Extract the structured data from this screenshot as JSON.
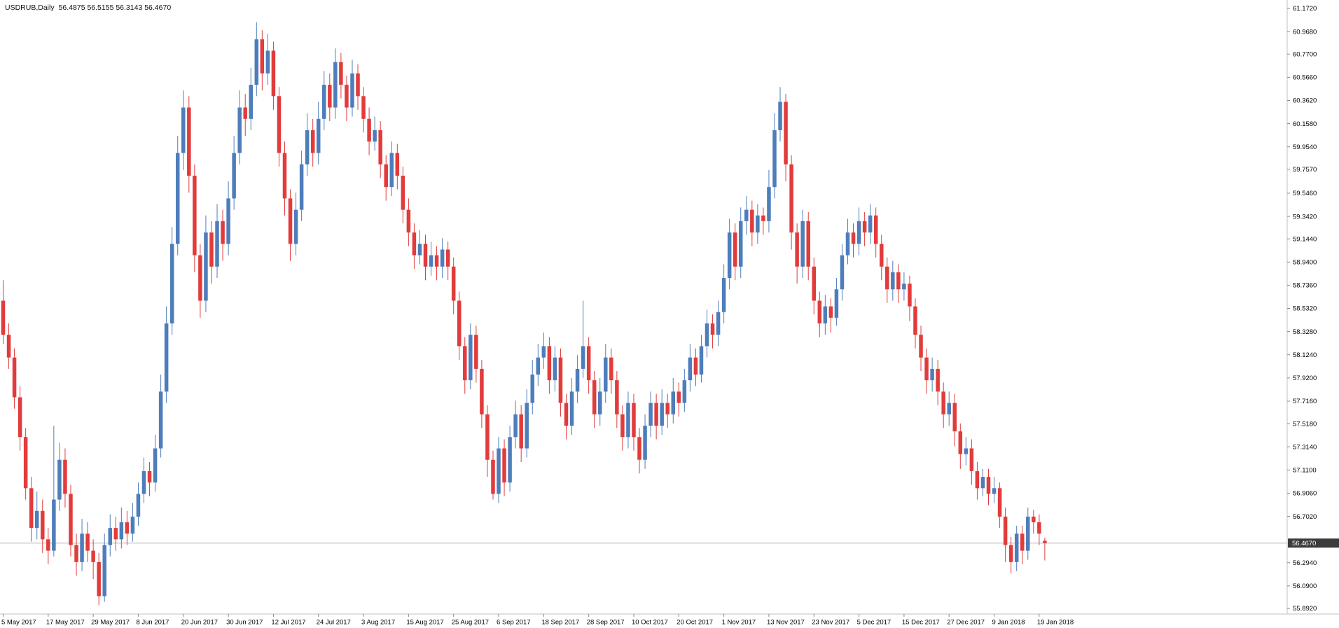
{
  "header": {
    "symbol_label": "USDRUB,Daily",
    "ohlc_text": "56.4875 56.5155 56.3143 56.4670"
  },
  "chart_data": {
    "type": "candlestick",
    "symbol": "USDRUB",
    "timeframe": "Daily",
    "ohlc_header": {
      "open": "56.4875",
      "high": "56.5155",
      "low": "56.3143",
      "close": "56.4670"
    },
    "current_price": 56.467,
    "current_price_label": "56.4670",
    "ylim": [
      55.843,
      61.246
    ],
    "grid": "off",
    "y_axis_labels": [
      "61.1720",
      "60.9680",
      "60.7700",
      "60.5660",
      "60.3620",
      "60.1580",
      "59.9540",
      "59.7570",
      "59.5460",
      "59.3420",
      "59.1440",
      "58.9400",
      "58.7360",
      "58.5320",
      "58.3280",
      "58.1240",
      "57.9200",
      "57.7160",
      "57.5180",
      "57.3140",
      "57.1100",
      "56.9060",
      "56.7020",
      "56.2940",
      "56.0900",
      "55.8920"
    ],
    "x_axis_labels": [
      {
        "text": "5 May 2017",
        "index": 0
      },
      {
        "text": "17 May 2017",
        "index": 8
      },
      {
        "text": "29 May 2017",
        "index": 16
      },
      {
        "text": "8 Jun 2017",
        "index": 24
      },
      {
        "text": "20 Jun 2017",
        "index": 32
      },
      {
        "text": "30 Jun 2017",
        "index": 40
      },
      {
        "text": "12 Jul 2017",
        "index": 48
      },
      {
        "text": "24 Jul 2017",
        "index": 56
      },
      {
        "text": "3 Aug 2017",
        "index": 64
      },
      {
        "text": "15 Aug 2017",
        "index": 72
      },
      {
        "text": "25 Aug 2017",
        "index": 80
      },
      {
        "text": "6 Sep 2017",
        "index": 88
      },
      {
        "text": "18 Sep 2017",
        "index": 96
      },
      {
        "text": "28 Sep 2017",
        "index": 104
      },
      {
        "text": "10 Oct 2017",
        "index": 112
      },
      {
        "text": "20 Oct 2017",
        "index": 120
      },
      {
        "text": "1 Nov 2017",
        "index": 128
      },
      {
        "text": "13 Nov 2017",
        "index": 136
      },
      {
        "text": "23 Nov 2017",
        "index": 144
      },
      {
        "text": "5 Dec 2017",
        "index": 152
      },
      {
        "text": "15 Dec 2017",
        "index": 160
      },
      {
        "text": "27 Dec 2017",
        "index": 168
      },
      {
        "text": "9 Jan 2018",
        "index": 176
      },
      {
        "text": "19 Jan 2018",
        "index": 184
      }
    ],
    "candles": [
      [
        58.6,
        58.78,
        58.22,
        58.3
      ],
      [
        58.3,
        58.4,
        58.0,
        58.1
      ],
      [
        58.1,
        58.18,
        57.65,
        57.75
      ],
      [
        57.75,
        57.85,
        57.28,
        57.4
      ],
      [
        57.4,
        57.48,
        56.85,
        56.95
      ],
      [
        56.95,
        57.05,
        56.48,
        56.6
      ],
      [
        56.6,
        56.92,
        56.5,
        56.75
      ],
      [
        56.75,
        56.85,
        56.38,
        56.5
      ],
      [
        56.5,
        56.6,
        56.28,
        56.4
      ],
      [
        56.4,
        57.5,
        56.35,
        56.85
      ],
      [
        56.85,
        57.35,
        56.75,
        57.2
      ],
      [
        57.2,
        57.3,
        56.78,
        56.9
      ],
      [
        56.9,
        56.98,
        56.35,
        56.45
      ],
      [
        56.45,
        56.55,
        56.18,
        56.3
      ],
      [
        56.3,
        56.68,
        56.22,
        56.55
      ],
      [
        56.55,
        56.65,
        56.3,
        56.4
      ],
      [
        56.4,
        56.5,
        56.15,
        56.3
      ],
      [
        56.3,
        56.38,
        55.92,
        56.0
      ],
      [
        56.0,
        56.55,
        55.95,
        56.45
      ],
      [
        56.45,
        56.72,
        56.35,
        56.6
      ],
      [
        56.6,
        56.7,
        56.4,
        56.5
      ],
      [
        56.5,
        56.78,
        56.42,
        56.65
      ],
      [
        56.65,
        56.75,
        56.45,
        56.55
      ],
      [
        56.55,
        56.82,
        56.48,
        56.7
      ],
      [
        56.7,
        57.0,
        56.62,
        56.9
      ],
      [
        56.9,
        57.22,
        56.82,
        57.1
      ],
      [
        57.1,
        57.18,
        56.88,
        57.0
      ],
      [
        57.0,
        57.42,
        56.92,
        57.3
      ],
      [
        57.3,
        57.95,
        57.22,
        57.8
      ],
      [
        57.8,
        58.55,
        57.7,
        58.4
      ],
      [
        58.4,
        59.25,
        58.3,
        59.1
      ],
      [
        59.1,
        60.05,
        59.0,
        59.9
      ],
      [
        59.9,
        60.45,
        59.75,
        60.3
      ],
      [
        60.3,
        60.4,
        59.55,
        59.7
      ],
      [
        59.7,
        59.8,
        58.85,
        59.0
      ],
      [
        59.0,
        59.1,
        58.45,
        58.6
      ],
      [
        58.6,
        59.35,
        58.5,
        59.2
      ],
      [
        59.2,
        59.3,
        58.75,
        58.9
      ],
      [
        58.9,
        59.45,
        58.8,
        59.3
      ],
      [
        59.3,
        59.4,
        58.95,
        59.1
      ],
      [
        59.1,
        59.65,
        59.0,
        59.5
      ],
      [
        59.5,
        60.05,
        59.4,
        59.9
      ],
      [
        59.9,
        60.45,
        59.8,
        60.3
      ],
      [
        60.3,
        60.42,
        60.05,
        60.2
      ],
      [
        60.2,
        60.65,
        60.1,
        60.5
      ],
      [
        60.5,
        61.05,
        60.4,
        60.9
      ],
      [
        60.9,
        60.98,
        60.45,
        60.6
      ],
      [
        60.6,
        60.95,
        60.5,
        60.8
      ],
      [
        60.8,
        60.88,
        60.28,
        60.4
      ],
      [
        60.4,
        60.48,
        59.78,
        59.9
      ],
      [
        59.9,
        60.0,
        59.35,
        59.5
      ],
      [
        59.5,
        59.58,
        58.95,
        59.1
      ],
      [
        59.1,
        59.55,
        59.0,
        59.4
      ],
      [
        59.4,
        59.92,
        59.3,
        59.8
      ],
      [
        59.8,
        60.25,
        59.7,
        60.1
      ],
      [
        60.1,
        60.2,
        59.78,
        59.9
      ],
      [
        59.9,
        60.35,
        59.8,
        60.2
      ],
      [
        60.2,
        60.62,
        60.1,
        60.5
      ],
      [
        60.5,
        60.6,
        60.18,
        60.3
      ],
      [
        60.3,
        60.82,
        60.2,
        60.7
      ],
      [
        60.7,
        60.78,
        60.38,
        60.5
      ],
      [
        60.5,
        60.58,
        60.18,
        60.3
      ],
      [
        60.3,
        60.72,
        60.22,
        60.6
      ],
      [
        60.6,
        60.68,
        60.28,
        60.4
      ],
      [
        60.4,
        60.48,
        60.08,
        60.2
      ],
      [
        60.2,
        60.3,
        59.88,
        60.0
      ],
      [
        60.0,
        60.22,
        59.92,
        60.1
      ],
      [
        60.1,
        60.18,
        59.68,
        59.8
      ],
      [
        59.8,
        59.88,
        59.48,
        59.6
      ],
      [
        59.6,
        60.0,
        59.52,
        59.9
      ],
      [
        59.9,
        59.98,
        59.58,
        59.7
      ],
      [
        59.7,
        59.78,
        59.28,
        59.4
      ],
      [
        59.4,
        59.5,
        59.08,
        59.2
      ],
      [
        59.2,
        59.28,
        58.88,
        59.0
      ],
      [
        59.0,
        59.22,
        58.92,
        59.1
      ],
      [
        59.1,
        59.18,
        58.78,
        58.9
      ],
      [
        58.9,
        59.12,
        58.82,
        59.0
      ],
      [
        59.0,
        59.08,
        58.78,
        58.9
      ],
      [
        58.9,
        59.15,
        58.8,
        59.05
      ],
      [
        59.05,
        59.12,
        58.78,
        58.9
      ],
      [
        58.9,
        58.98,
        58.48,
        58.6
      ],
      [
        58.6,
        58.68,
        58.08,
        58.2
      ],
      [
        58.2,
        58.28,
        57.78,
        57.9
      ],
      [
        57.9,
        58.4,
        57.82,
        58.3
      ],
      [
        58.3,
        58.38,
        57.88,
        58.0
      ],
      [
        58.0,
        58.08,
        57.48,
        57.6
      ],
      [
        57.6,
        57.68,
        57.05,
        57.2
      ],
      [
        57.2,
        57.28,
        56.85,
        56.9
      ],
      [
        56.9,
        57.4,
        56.82,
        57.3
      ],
      [
        57.3,
        57.38,
        56.88,
        57.0
      ],
      [
        57.0,
        57.5,
        56.92,
        57.4
      ],
      [
        57.4,
        57.72,
        57.3,
        57.6
      ],
      [
        57.6,
        57.68,
        57.18,
        57.3
      ],
      [
        57.3,
        57.82,
        57.22,
        57.7
      ],
      [
        57.7,
        58.08,
        57.6,
        57.95
      ],
      [
        57.95,
        58.22,
        57.85,
        58.1
      ],
      [
        58.1,
        58.32,
        58.0,
        58.2
      ],
      [
        58.2,
        58.28,
        57.78,
        57.9
      ],
      [
        57.9,
        58.2,
        57.8,
        58.1
      ],
      [
        58.1,
        58.18,
        57.58,
        57.7
      ],
      [
        57.7,
        57.78,
        57.38,
        57.5
      ],
      [
        57.5,
        57.92,
        57.42,
        57.8
      ],
      [
        57.8,
        58.12,
        57.7,
        58.0
      ],
      [
        58.0,
        58.6,
        57.92,
        58.2
      ],
      [
        58.2,
        58.28,
        57.78,
        57.9
      ],
      [
        57.9,
        57.98,
        57.48,
        57.6
      ],
      [
        57.6,
        57.92,
        57.5,
        57.8
      ],
      [
        57.8,
        58.22,
        57.7,
        58.1
      ],
      [
        58.1,
        58.18,
        57.78,
        57.9
      ],
      [
        57.9,
        57.98,
        57.48,
        57.6
      ],
      [
        57.6,
        57.68,
        57.28,
        57.4
      ],
      [
        57.4,
        57.8,
        57.3,
        57.7
      ],
      [
        57.7,
        57.78,
        57.28,
        57.4
      ],
      [
        57.4,
        57.48,
        57.08,
        57.2
      ],
      [
        57.2,
        57.6,
        57.12,
        57.5
      ],
      [
        57.5,
        57.8,
        57.4,
        57.7
      ],
      [
        57.7,
        57.78,
        57.38,
        57.5
      ],
      [
        57.5,
        57.82,
        57.42,
        57.7
      ],
      [
        57.7,
        57.78,
        57.48,
        57.6
      ],
      [
        57.6,
        57.92,
        57.52,
        57.8
      ],
      [
        57.8,
        57.88,
        57.58,
        57.7
      ],
      [
        57.7,
        58.0,
        57.62,
        57.9
      ],
      [
        57.9,
        58.22,
        57.8,
        58.1
      ],
      [
        58.1,
        58.18,
        57.85,
        57.95
      ],
      [
        57.95,
        58.3,
        57.88,
        58.2
      ],
      [
        58.2,
        58.52,
        58.1,
        58.4
      ],
      [
        58.4,
        58.48,
        58.18,
        58.3
      ],
      [
        58.3,
        58.6,
        58.2,
        58.5
      ],
      [
        58.5,
        58.92,
        58.4,
        58.8
      ],
      [
        58.8,
        59.32,
        58.7,
        59.2
      ],
      [
        59.2,
        59.28,
        58.78,
        58.9
      ],
      [
        58.9,
        59.42,
        58.8,
        59.3
      ],
      [
        59.3,
        59.52,
        59.18,
        59.4
      ],
      [
        59.4,
        59.48,
        59.08,
        59.2
      ],
      [
        59.2,
        59.45,
        59.1,
        59.35
      ],
      [
        59.35,
        59.42,
        59.18,
        59.3
      ],
      [
        59.3,
        59.75,
        59.2,
        59.6
      ],
      [
        59.6,
        60.25,
        59.5,
        60.1
      ],
      [
        60.1,
        60.48,
        60.0,
        60.35
      ],
      [
        60.35,
        60.42,
        59.65,
        59.8
      ],
      [
        59.8,
        59.88,
        59.05,
        59.2
      ],
      [
        59.2,
        59.28,
        58.75,
        58.9
      ],
      [
        58.9,
        59.4,
        58.8,
        59.3
      ],
      [
        59.3,
        59.38,
        58.78,
        58.9
      ],
      [
        58.9,
        58.98,
        58.48,
        58.6
      ],
      [
        58.6,
        58.68,
        58.28,
        58.4
      ],
      [
        58.4,
        58.65,
        58.3,
        58.55
      ],
      [
        58.55,
        58.62,
        58.32,
        58.45
      ],
      [
        58.45,
        58.8,
        58.38,
        58.7
      ],
      [
        58.7,
        59.1,
        58.6,
        59.0
      ],
      [
        59.0,
        59.32,
        58.92,
        59.2
      ],
      [
        59.2,
        59.28,
        58.98,
        59.1
      ],
      [
        59.1,
        59.42,
        59.0,
        59.3
      ],
      [
        59.3,
        59.38,
        59.08,
        59.2
      ],
      [
        59.2,
        59.45,
        59.1,
        59.35
      ],
      [
        59.35,
        59.42,
        58.98,
        59.1
      ],
      [
        59.1,
        59.18,
        58.78,
        58.9
      ],
      [
        58.9,
        58.98,
        58.58,
        58.7
      ],
      [
        58.7,
        58.95,
        58.6,
        58.85
      ],
      [
        58.85,
        58.92,
        58.58,
        58.7
      ],
      [
        58.7,
        58.85,
        58.6,
        58.75
      ],
      [
        58.75,
        58.82,
        58.42,
        58.55
      ],
      [
        58.55,
        58.62,
        58.18,
        58.3
      ],
      [
        58.3,
        58.38,
        57.98,
        58.1
      ],
      [
        58.1,
        58.18,
        57.78,
        57.9
      ],
      [
        57.9,
        58.1,
        57.8,
        58.0
      ],
      [
        58.0,
        58.08,
        57.68,
        57.8
      ],
      [
        57.8,
        57.88,
        57.48,
        57.6
      ],
      [
        57.6,
        57.8,
        57.5,
        57.7
      ],
      [
        57.7,
        57.78,
        57.32,
        57.45
      ],
      [
        57.45,
        57.52,
        57.12,
        57.25
      ],
      [
        57.25,
        57.4,
        57.15,
        57.3
      ],
      [
        57.3,
        57.38,
        56.98,
        57.1
      ],
      [
        57.1,
        57.18,
        56.85,
        56.95
      ],
      [
        56.95,
        57.12,
        56.88,
        57.05
      ],
      [
        57.05,
        57.12,
        56.8,
        56.9
      ],
      [
        56.9,
        57.05,
        56.82,
        56.95
      ],
      [
        56.95,
        57.0,
        56.6,
        56.7
      ],
      [
        56.7,
        56.78,
        56.3,
        56.45
      ],
      [
        56.45,
        56.52,
        56.2,
        56.3
      ],
      [
        56.3,
        56.62,
        56.22,
        56.55
      ],
      [
        56.55,
        56.62,
        56.28,
        56.4
      ],
      [
        56.4,
        56.78,
        56.32,
        56.7
      ],
      [
        56.7,
        56.76,
        56.55,
        56.65
      ],
      [
        56.65,
        56.72,
        56.45,
        56.55
      ],
      [
        56.4875,
        56.5155,
        56.3143,
        56.467
      ]
    ],
    "colors": {
      "up": "#4e7dbb",
      "down": "#e23b3b",
      "price_line": "#b3b3b3",
      "badge_bg": "#3c3c3c",
      "badge_text": "#ffffff",
      "axis_text": "#000000",
      "separator": "#c0c0c0",
      "tick": "#8a8a8a",
      "background": "#ffffff"
    }
  }
}
